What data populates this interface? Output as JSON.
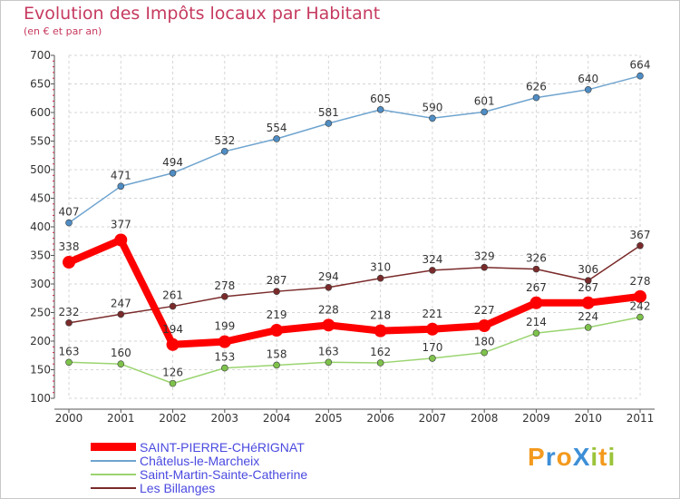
{
  "chart_data": {
    "type": "line",
    "title": "Evolution des Impôts locaux par Habitant",
    "subtitle": "(en € et par an)",
    "categories": [
      "2000",
      "2001",
      "2002",
      "2003",
      "2004",
      "2005",
      "2006",
      "2007",
      "2008",
      "2009",
      "2010",
      "2011"
    ],
    "ylim": [
      100,
      700
    ],
    "yticks": [
      100,
      150,
      200,
      250,
      300,
      350,
      400,
      450,
      500,
      550,
      600,
      650,
      700
    ],
    "grid": true,
    "legend_position": "bottom-left",
    "series": [
      {
        "name": "SAINT-PIERRE-CHéRIGNAT",
        "color": "#ff0000",
        "marker_color": "#ff0000",
        "emphasis": true,
        "values": [
          338,
          377,
          194,
          199,
          219,
          228,
          218,
          221,
          227,
          267,
          267,
          278
        ]
      },
      {
        "name": "Châtelus-le-Marcheix",
        "color": "#6fa4cf",
        "marker_color": "#4f8dc4",
        "values": [
          407,
          471,
          494,
          532,
          554,
          581,
          605,
          590,
          601,
          626,
          640,
          664
        ]
      },
      {
        "name": "Saint-Martin-Sainte-Catherine",
        "color": "#9ad470",
        "marker_color": "#7ec24c",
        "values": [
          163,
          160,
          126,
          153,
          158,
          163,
          162,
          170,
          180,
          214,
          224,
          242
        ]
      },
      {
        "name": "Les Billanges",
        "color": "#7a2a2a",
        "marker_color": "#7a2a2a",
        "values": [
          232,
          247,
          261,
          278,
          287,
          294,
          310,
          324,
          329,
          326,
          306,
          367
        ]
      }
    ]
  },
  "logo": {
    "text": "ProXiti",
    "letters": [
      {
        "ch": "P",
        "color": "#f39a1e"
      },
      {
        "ch": "r",
        "color": "#3d8fd6"
      },
      {
        "ch": "o",
        "color": "#f39a1e"
      },
      {
        "ch": "X",
        "color": "#3d8fd6"
      },
      {
        "ch": "i",
        "color": "#9bc43a"
      },
      {
        "ch": "t",
        "color": "#f39a1e"
      },
      {
        "ch": "i",
        "color": "#9bc43a"
      }
    ]
  }
}
